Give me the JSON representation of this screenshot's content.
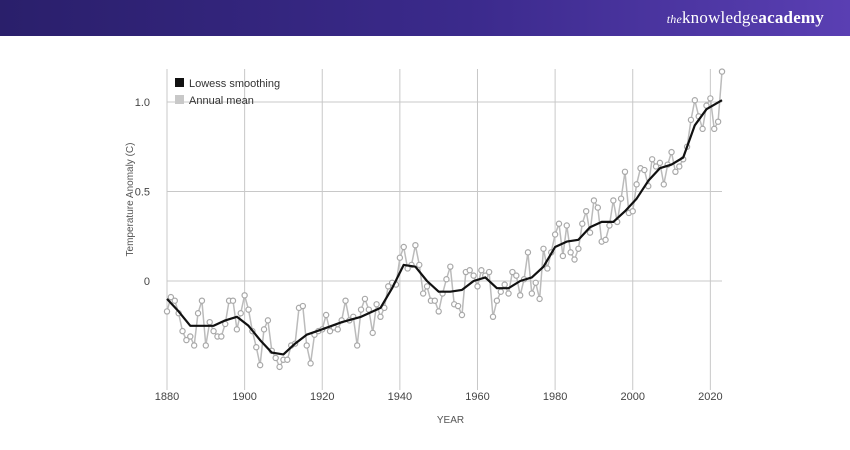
{
  "header": {
    "brand_the": "the",
    "brand_knowledge": "knowledge",
    "brand_academy": "academy",
    "background": "#3b2a8c"
  },
  "chart_data": {
    "type": "line",
    "title": "",
    "xlabel": "YEAR",
    "ylabel": "Temperature Anomaly (C)",
    "xlim": [
      1880,
      2023
    ],
    "ylim": [
      -0.55,
      1.2
    ],
    "x_ticks": [
      1880,
      1900,
      1920,
      1940,
      1960,
      1980,
      2000,
      2020
    ],
    "y_ticks": [
      {
        "value": 1.0,
        "label": "1.0"
      },
      {
        "value": 0.5,
        "label": "0.5"
      },
      {
        "value": 0,
        "label": "0"
      }
    ],
    "grid": true,
    "legend_position": "top-left",
    "series": [
      {
        "name": "Lowess smoothing",
        "legend_label": "Lowess smoothing",
        "color": "#111111",
        "x": [
          1880,
          1883,
          1886,
          1889,
          1892,
          1895,
          1898,
          1901,
          1904,
          1907,
          1910,
          1913,
          1916,
          1920,
          1925,
          1930,
          1935,
          1938,
          1941,
          1944,
          1947,
          1950,
          1953,
          1956,
          1959,
          1962,
          1965,
          1968,
          1971,
          1974,
          1977,
          1980,
          1983,
          1986,
          1989,
          1992,
          1995,
          1998,
          2001,
          2004,
          2007,
          2010,
          2013,
          2016,
          2019,
          2023
        ],
        "values": [
          -0.1,
          -0.17,
          -0.25,
          -0.25,
          -0.25,
          -0.22,
          -0.2,
          -0.25,
          -0.33,
          -0.4,
          -0.41,
          -0.35,
          -0.3,
          -0.27,
          -0.23,
          -0.2,
          -0.15,
          -0.04,
          0.09,
          0.08,
          0,
          -0.06,
          -0.06,
          -0.05,
          0,
          0.02,
          -0.04,
          -0.04,
          0,
          0.02,
          0.08,
          0.19,
          0.22,
          0.23,
          0.3,
          0.33,
          0.33,
          0.39,
          0.46,
          0.56,
          0.63,
          0.65,
          0.69,
          0.87,
          0.96,
          1.01
        ]
      },
      {
        "name": "Annual mean",
        "legend_label": "Annual mean",
        "color": "#bbbbbb",
        "x": [
          1880,
          1881,
          1882,
          1883,
          1884,
          1885,
          1886,
          1887,
          1888,
          1889,
          1890,
          1891,
          1892,
          1893,
          1894,
          1895,
          1896,
          1897,
          1898,
          1899,
          1900,
          1901,
          1902,
          1903,
          1904,
          1905,
          1906,
          1907,
          1908,
          1909,
          1910,
          1911,
          1912,
          1913,
          1914,
          1915,
          1916,
          1917,
          1918,
          1919,
          1920,
          1921,
          1922,
          1923,
          1924,
          1925,
          1926,
          1927,
          1928,
          1929,
          1930,
          1931,
          1932,
          1933,
          1934,
          1935,
          1936,
          1937,
          1938,
          1939,
          1940,
          1941,
          1942,
          1943,
          1944,
          1945,
          1946,
          1947,
          1948,
          1949,
          1950,
          1951,
          1952,
          1953,
          1954,
          1955,
          1956,
          1957,
          1958,
          1959,
          1960,
          1961,
          1962,
          1963,
          1964,
          1965,
          1966,
          1967,
          1968,
          1969,
          1970,
          1971,
          1972,
          1973,
          1974,
          1975,
          1976,
          1977,
          1978,
          1979,
          1980,
          1981,
          1982,
          1983,
          1984,
          1985,
          1986,
          1987,
          1988,
          1989,
          1990,
          1991,
          1992,
          1993,
          1994,
          1995,
          1996,
          1997,
          1998,
          1999,
          2000,
          2001,
          2002,
          2003,
          2004,
          2005,
          2006,
          2007,
          2008,
          2009,
          2010,
          2011,
          2012,
          2013,
          2014,
          2015,
          2016,
          2017,
          2018,
          2019,
          2020,
          2021,
          2022,
          2023
        ],
        "values": [
          -0.17,
          -0.09,
          -0.11,
          -0.18,
          -0.28,
          -0.33,
          -0.31,
          -0.36,
          -0.18,
          -0.11,
          -0.36,
          -0.23,
          -0.28,
          -0.31,
          -0.31,
          -0.24,
          -0.11,
          -0.11,
          -0.27,
          -0.18,
          -0.08,
          -0.16,
          -0.28,
          -0.37,
          -0.47,
          -0.27,
          -0.22,
          -0.39,
          -0.43,
          -0.48,
          -0.44,
          -0.44,
          -0.36,
          -0.35,
          -0.15,
          -0.14,
          -0.36,
          -0.46,
          -0.3,
          -0.28,
          -0.27,
          -0.19,
          -0.28,
          -0.26,
          -0.27,
          -0.22,
          -0.11,
          -0.22,
          -0.2,
          -0.36,
          -0.16,
          -0.1,
          -0.16,
          -0.29,
          -0.13,
          -0.2,
          -0.15,
          -0.03,
          -0.01,
          -0.02,
          0.13,
          0.19,
          0.07,
          0.09,
          0.2,
          0.09,
          -0.07,
          -0.03,
          -0.11,
          -0.11,
          -0.17,
          -0.07,
          0.01,
          0.08,
          -0.13,
          -0.14,
          -0.19,
          0.05,
          0.06,
          0.03,
          -0.03,
          0.06,
          0.03,
          0.05,
          -0.2,
          -0.11,
          -0.06,
          -0.02,
          -0.07,
          0.05,
          0.03,
          -0.08,
          0.01,
          0.16,
          -0.07,
          -0.01,
          -0.1,
          0.18,
          0.07,
          0.16,
          0.26,
          0.32,
          0.14,
          0.31,
          0.16,
          0.12,
          0.18,
          0.32,
          0.39,
          0.27,
          0.45,
          0.41,
          0.22,
          0.23,
          0.31,
          0.45,
          0.33,
          0.46,
          0.61,
          0.38,
          0.39,
          0.54,
          0.63,
          0.62,
          0.53,
          0.68,
          0.64,
          0.66,
          0.54,
          0.65,
          0.72,
          0.61,
          0.64,
          0.68,
          0.75,
          0.9,
          1.01,
          0.92,
          0.85,
          0.98,
          1.02,
          0.85,
          0.89,
          1.17
        ]
      }
    ]
  }
}
